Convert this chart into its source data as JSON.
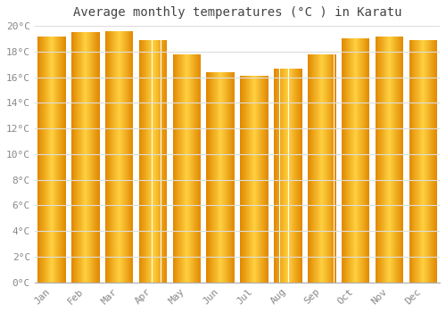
{
  "title": "Average monthly temperatures (°C ) in Karatu",
  "months": [
    "Jan",
    "Feb",
    "Mar",
    "Apr",
    "May",
    "Jun",
    "Jul",
    "Aug",
    "Sep",
    "Oct",
    "Nov",
    "Dec"
  ],
  "temperatures": [
    19.2,
    19.5,
    19.6,
    18.9,
    17.8,
    16.4,
    16.1,
    16.7,
    17.8,
    19.0,
    19.2,
    18.9
  ],
  "bar_edge_color": "#E07800",
  "bar_center_color": "#FFD040",
  "bar_mid_color": "#FFAA00",
  "background_color": "#FFFFFF",
  "plot_bg_color": "#FFFFFF",
  "grid_color": "#DDDDDD",
  "ylim": [
    0,
    20
  ],
  "ytick_step": 2,
  "title_fontsize": 10,
  "tick_fontsize": 8,
  "tick_color": "#888888",
  "title_color": "#444444",
  "bar_width": 0.82,
  "n_grad": 60
}
